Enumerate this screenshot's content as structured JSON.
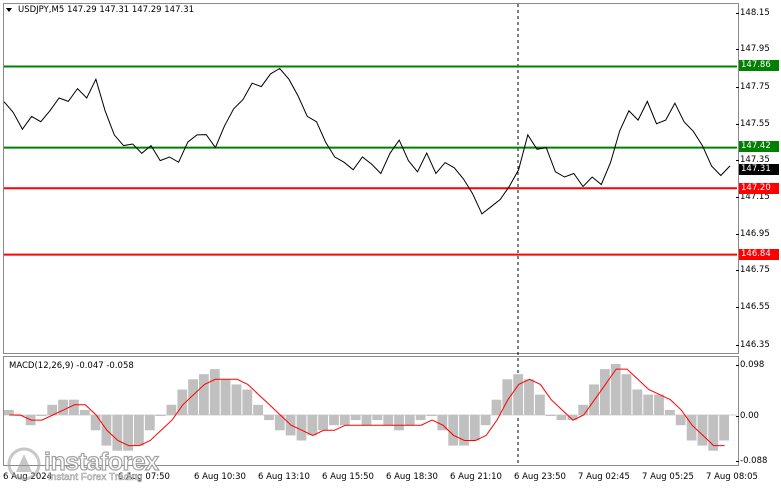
{
  "symbol_info": {
    "text": "USDJPY,M5  147.29 147.31 147.29 147.31"
  },
  "macd_info": {
    "text": "MACD(12,26,9) -0.047 -0.058"
  },
  "colors": {
    "support": "#ff0000",
    "resistance": "#008000",
    "current": "#000000",
    "macd_hist": "#c0c0c0",
    "macd_signal": "#ff0000",
    "price_line": "#000000"
  },
  "price_axis": {
    "ticks": [
      "148.15",
      "147.95",
      "147.75",
      "147.55",
      "147.35",
      "147.15",
      "146.95",
      "146.75",
      "146.55",
      "146.35"
    ]
  },
  "macd_axis": {
    "ticks": [
      "0.098",
      "0.00",
      "-0.088"
    ]
  },
  "levels": [
    {
      "label": "147.86",
      "color": "#008000"
    },
    {
      "label": "147.42",
      "color": "#008000"
    },
    {
      "label": "147.20",
      "color": "#ff0000"
    },
    {
      "label": "146.84",
      "color": "#ff0000"
    }
  ],
  "current_price": {
    "label": "147.31"
  },
  "time_axis": {
    "labels": [
      "6 Aug 2024",
      "6 Aug 07:50",
      "6 Aug 10:30",
      "6 Aug 13:10",
      "6 Aug 15:50",
      "6 Aug 18:30",
      "6 Aug 21:10",
      "6 Aug 23:50",
      "7 Aug 02:45",
      "7 Aug 05:25",
      "7 Aug 08:05"
    ]
  },
  "watermark": {
    "name": "instaforex",
    "slogan": "Instant Forex Trading"
  },
  "chart_data": {
    "type": "line",
    "title": "USDJPY,M5",
    "price_range": [
      146.3,
      148.2
    ],
    "price_series": [
      147.68,
      147.6,
      147.52,
      147.6,
      147.55,
      147.62,
      147.7,
      147.66,
      147.74,
      147.7,
      147.78,
      147.62,
      147.5,
      147.42,
      147.44,
      147.4,
      147.42,
      147.35,
      147.38,
      147.33,
      147.45,
      147.5,
      147.48,
      147.42,
      147.55,
      147.62,
      147.68,
      147.78,
      147.74,
      147.82,
      147.86,
      147.78,
      147.7,
      147.6,
      147.55,
      147.45,
      147.38,
      147.33,
      147.3,
      147.38,
      147.32,
      147.28,
      147.4,
      147.45,
      147.35,
      147.3,
      147.38,
      147.28,
      147.35,
      147.3,
      147.25,
      147.18,
      147.05,
      147.1,
      147.15,
      147.2,
      147.3,
      147.5,
      147.4,
      147.42,
      147.3,
      147.25,
      147.28,
      147.22,
      147.25,
      147.22,
      147.35,
      147.5,
      147.62,
      147.58,
      147.66,
      147.55,
      147.58,
      147.65,
      147.56,
      147.52,
      147.42,
      147.32,
      147.28,
      147.31
    ],
    "macd_range": [
      -0.098,
      0.11
    ],
    "macd_histogram": [
      0.01,
      0.0,
      -0.02,
      0.0,
      0.02,
      0.03,
      0.03,
      0.01,
      -0.03,
      -0.06,
      -0.07,
      -0.07,
      -0.06,
      -0.03,
      0.0,
      0.02,
      0.05,
      0.07,
      0.08,
      0.09,
      0.07,
      0.06,
      0.05,
      0.02,
      -0.01,
      -0.03,
      -0.04,
      -0.05,
      -0.04,
      -0.03,
      -0.02,
      -0.02,
      -0.01,
      -0.02,
      -0.01,
      -0.02,
      -0.03,
      -0.02,
      -0.01,
      0.0,
      -0.03,
      -0.06,
      -0.06,
      -0.05,
      -0.02,
      0.03,
      0.07,
      0.08,
      0.07,
      0.04,
      0.0,
      -0.01,
      -0.01,
      0.02,
      0.06,
      0.09,
      0.1,
      0.08,
      0.05,
      0.04,
      0.04,
      0.01,
      -0.02,
      -0.05,
      -0.06,
      -0.07,
      -0.05
    ],
    "macd_signal": [
      0.0,
      0.0,
      -0.01,
      -0.01,
      0.0,
      0.01,
      0.02,
      0.02,
      0.0,
      -0.03,
      -0.05,
      -0.06,
      -0.06,
      -0.05,
      -0.03,
      -0.01,
      0.02,
      0.04,
      0.06,
      0.07,
      0.07,
      0.07,
      0.06,
      0.04,
      0.02,
      0.0,
      -0.02,
      -0.03,
      -0.04,
      -0.03,
      -0.03,
      -0.02,
      -0.02,
      -0.02,
      -0.02,
      -0.02,
      -0.02,
      -0.02,
      -0.02,
      -0.01,
      -0.02,
      -0.04,
      -0.05,
      -0.05,
      -0.04,
      -0.01,
      0.03,
      0.06,
      0.07,
      0.06,
      0.03,
      0.01,
      -0.01,
      0.0,
      0.03,
      0.06,
      0.09,
      0.09,
      0.07,
      0.05,
      0.04,
      0.03,
      0.01,
      -0.02,
      -0.04,
      -0.06,
      -0.06
    ]
  }
}
